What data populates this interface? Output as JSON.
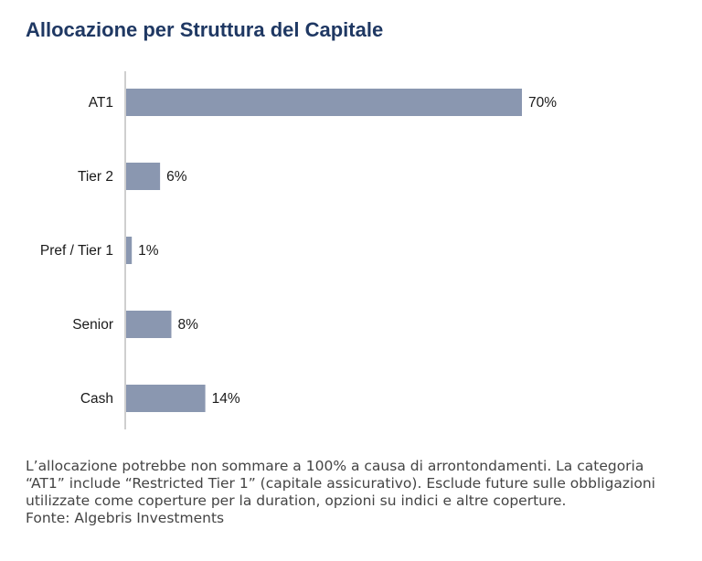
{
  "colors": {
    "title": "#1f3863",
    "bar": "#8a97b0",
    "axis": "#bfbfbf",
    "text": "#1a1a1a",
    "footnote": "#444444"
  },
  "chart_data": {
    "type": "bar",
    "orientation": "horizontal",
    "title": "Allocazione per Struttura del Capitale",
    "categories": [
      "AT1",
      "Tier 2",
      "Pref / Tier 1",
      "Senior",
      "Cash"
    ],
    "values": [
      70,
      6,
      1,
      8,
      14
    ],
    "data_labels": [
      "70%",
      "6%",
      "1%",
      "8%",
      "14%"
    ],
    "unit": "%",
    "xlim": [
      0,
      70
    ],
    "grid": false,
    "legend": "none"
  },
  "footnote": {
    "lines": [
      "L’allocazione potrebbe non sommare a 100% a causa di arrontondamenti. La categoria",
      "“AT1” include “Restricted Tier 1” (capitale assicurativo). Esclude future sulle obbligazioni",
      "utilizzate come coperture per la duration, opzioni su indici e altre coperture."
    ],
    "source": "Fonte: Algebris Investments"
  }
}
